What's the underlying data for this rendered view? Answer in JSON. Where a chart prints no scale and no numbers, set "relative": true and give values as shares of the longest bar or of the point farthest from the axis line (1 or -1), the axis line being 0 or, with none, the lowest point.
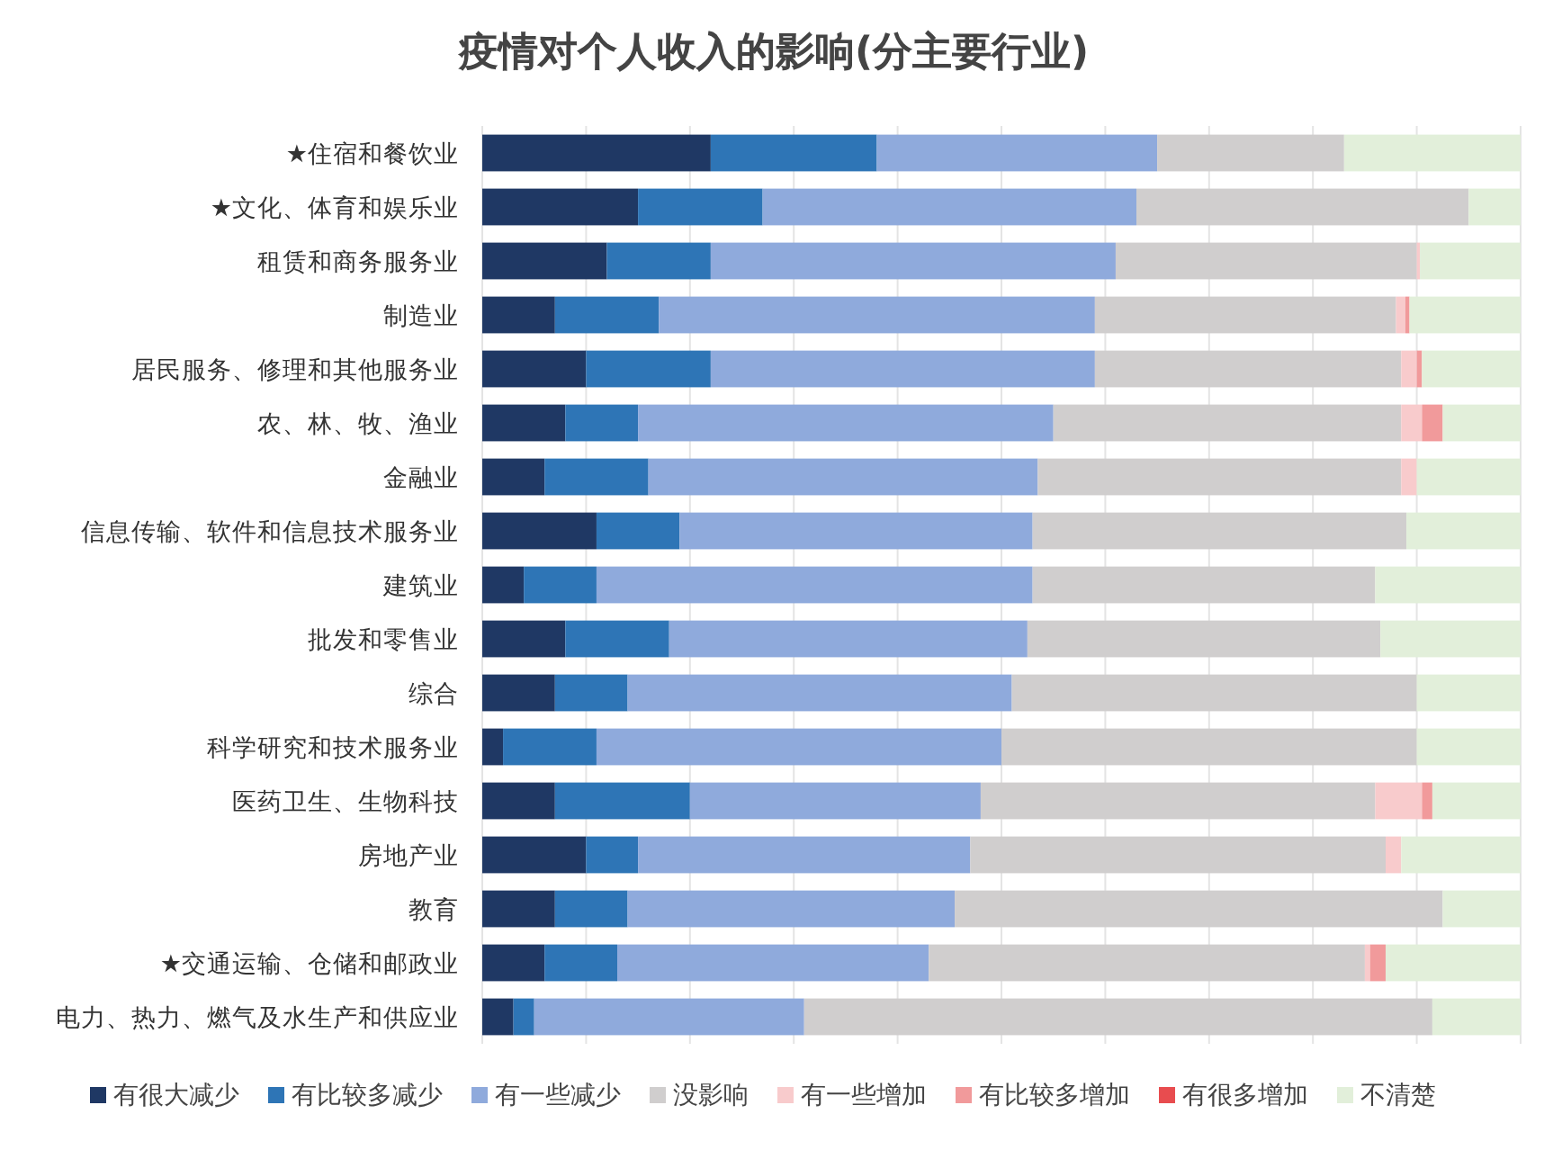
{
  "chart_data": {
    "type": "bar",
    "title": "疫情对个人收入的影响(分主要行业)",
    "orientation": "horizontal",
    "stacked": true,
    "relative": true,
    "grid": "x",
    "legend": "bottom",
    "categories": [
      "★住宿和餐饮业",
      "★文化、体育和娱乐业",
      "租赁和商务服务业",
      "制造业",
      "居民服务、修理和其他服务业",
      "农、林、牧、渔业",
      "金融业",
      "信息传输、软件和信息技术服务业",
      "建筑业",
      "批发和零售业",
      "综合",
      "科学研究和技术服务业",
      "医药卫生、生物科技",
      "房地产业",
      "教育",
      "★交通运输、仓储和邮政业",
      "电力、热力、燃气及水生产和供应业"
    ],
    "series": [
      {
        "name": "有很大减少",
        "color": "#1f3864",
        "values": [
          0.22,
          0.15,
          0.12,
          0.07,
          0.1,
          0.08,
          0.06,
          0.11,
          0.04,
          0.08,
          0.07,
          0.02,
          0.07,
          0.1,
          0.07,
          0.06,
          0.03
        ]
      },
      {
        "name": "有比较多减少",
        "color": "#2e75b6",
        "values": [
          0.16,
          0.12,
          0.1,
          0.1,
          0.12,
          0.07,
          0.1,
          0.08,
          0.07,
          0.1,
          0.07,
          0.09,
          0.13,
          0.05,
          0.07,
          0.07,
          0.02
        ]
      },
      {
        "name": "有一些减少",
        "color": "#8faadc",
        "values": [
          0.27,
          0.36,
          0.39,
          0.42,
          0.37,
          0.4,
          0.375,
          0.34,
          0.42,
          0.345,
          0.37,
          0.39,
          0.28,
          0.32,
          0.315,
          0.3,
          0.26
        ]
      },
      {
        "name": "没影响",
        "color": "#d0cece",
        "values": [
          0.18,
          0.32,
          0.29,
          0.29,
          0.295,
          0.335,
          0.35,
          0.36,
          0.33,
          0.34,
          0.39,
          0.4,
          0.38,
          0.4,
          0.47,
          0.42,
          0.605
        ]
      },
      {
        "name": "有一些增加",
        "color": "#f8cbcc",
        "values": [
          0,
          0,
          0.003,
          0.009,
          0.015,
          0.02,
          0.015,
          0,
          0,
          0,
          0,
          0,
          0.045,
          0.015,
          0,
          0.005,
          0
        ]
      },
      {
        "name": "有比较多增加",
        "color": "#f19a9b",
        "values": [
          0,
          0,
          0,
          0.004,
          0.005,
          0.02,
          0,
          0,
          0,
          0,
          0,
          0,
          0.01,
          0,
          0,
          0.015,
          0
        ]
      },
      {
        "name": "有很多增加",
        "color": "#e84c4f",
        "values": [
          0,
          0,
          0,
          0,
          0,
          0,
          0,
          0,
          0,
          0,
          0,
          0,
          0,
          0,
          0,
          0,
          0
        ]
      },
      {
        "name": "不清楚",
        "color": "#e2efda",
        "values": [
          0.17,
          0.05,
          0.097,
          0.107,
          0.095,
          0.075,
          0.1,
          0.11,
          0.14,
          0.135,
          0.1,
          0.1,
          0.085,
          0.115,
          0.075,
          0.13,
          0.085
        ]
      }
    ]
  }
}
